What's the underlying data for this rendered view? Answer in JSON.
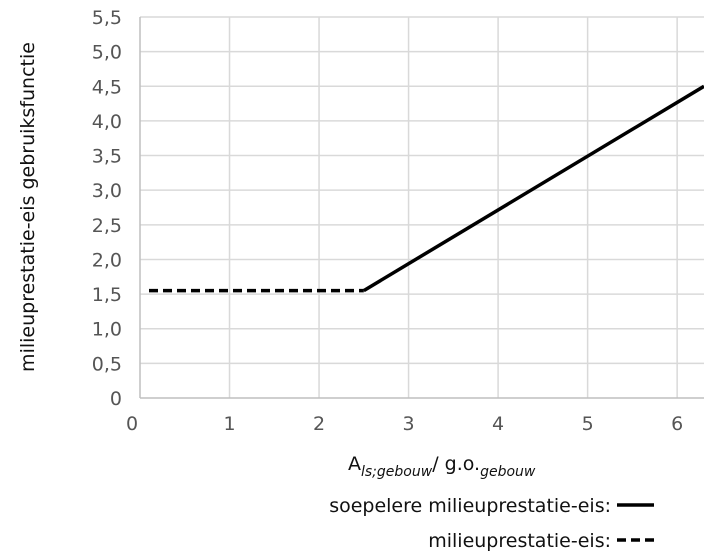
{
  "chart_data": {
    "type": "line",
    "title": "",
    "ylabel": "milieuprestatie-eis gebruiksfunctie",
    "xlabel": {
      "main": "A",
      "main_sub": "ls;gebouw",
      "separator": "/ g.o.",
      "separator_sub": "gebouw"
    },
    "xlim": [
      0,
      6.3
    ],
    "ylim": [
      0,
      5.5
    ],
    "x_ticks": [
      {
        "value": 0,
        "label": "0"
      },
      {
        "value": 1,
        "label": "1"
      },
      {
        "value": 2,
        "label": "2"
      },
      {
        "value": 3,
        "label": "3"
      },
      {
        "value": 4,
        "label": "4"
      },
      {
        "value": 5,
        "label": "5"
      },
      {
        "value": 6,
        "label": "6"
      }
    ],
    "y_ticks": [
      {
        "value": 0,
        "label": "0"
      },
      {
        "value": 0.5,
        "label": "0,5"
      },
      {
        "value": 1.0,
        "label": "1,0"
      },
      {
        "value": 1.5,
        "label": "1,5"
      },
      {
        "value": 2.0,
        "label": "2,0"
      },
      {
        "value": 2.5,
        "label": "2,5"
      },
      {
        "value": 3.0,
        "label": "3,0"
      },
      {
        "value": 3.5,
        "label": "3,5"
      },
      {
        "value": 4.0,
        "label": "4,0"
      },
      {
        "value": 4.5,
        "label": "4,5"
      },
      {
        "value": 5.0,
        "label": "5,0"
      },
      {
        "value": 5.5,
        "label": "5,5"
      }
    ],
    "grid": true,
    "legend_position": "bottom-right",
    "series": [
      {
        "name": "soepelere milieuprestatie-eis:",
        "style": "solid",
        "color": "#000000",
        "x": [
          2.5,
          6.3
        ],
        "y": [
          1.55,
          4.5
        ]
      },
      {
        "name": "milieuprestatie-eis:",
        "style": "dashed",
        "color": "#000000",
        "x": [
          0.1,
          2.5
        ],
        "y": [
          1.55,
          1.55
        ]
      }
    ]
  }
}
